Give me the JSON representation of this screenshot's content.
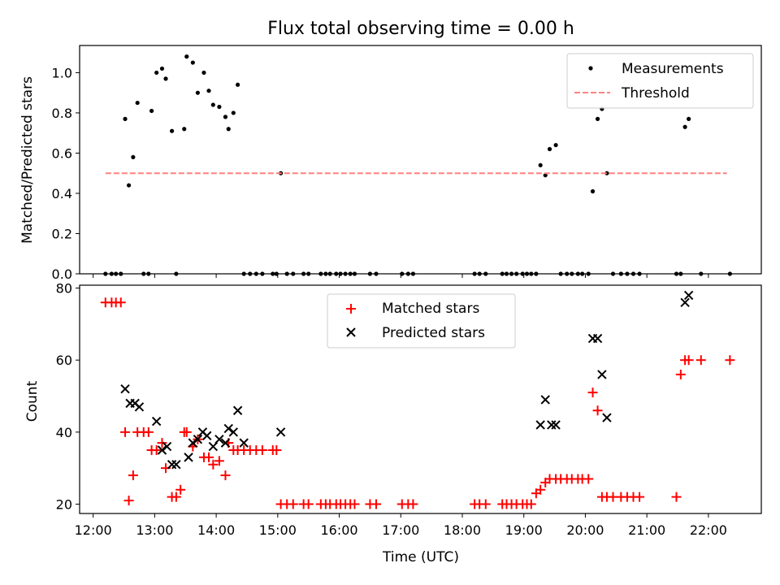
{
  "chart_data": [
    {
      "type": "scatter",
      "title": "Flux total observing time = 0.00 h",
      "ylabel": "Matched/Predicted stars",
      "xlim": [
        11.78,
        22.86
      ],
      "ylim": [
        0,
        1.135
      ],
      "yticks": [
        0.0,
        0.2,
        0.4,
        0.6,
        0.8,
        1.0
      ],
      "xticks": [
        12,
        13,
        14,
        15,
        16,
        17,
        18,
        19,
        20,
        21,
        22
      ],
      "legend_location": "upper right",
      "series": [
        {
          "name": "Measurements",
          "marker": "dot",
          "color": "#000000",
          "x": [
            12.2,
            12.3,
            12.37,
            12.45,
            12.52,
            12.58,
            12.65,
            12.72,
            12.82,
            12.9,
            12.95,
            13.03,
            13.12,
            13.18,
            13.28,
            13.35,
            13.48,
            13.52,
            13.62,
            13.7,
            13.8,
            13.88,
            13.95,
            14.05,
            14.15,
            14.2,
            14.28,
            14.35,
            14.45,
            14.55,
            14.65,
            14.75,
            14.92,
            14.98,
            15.05,
            15.15,
            15.25,
            15.42,
            15.5,
            15.7,
            15.78,
            15.85,
            15.95,
            16.02,
            16.1,
            16.18,
            16.25,
            16.5,
            16.6,
            17.02,
            17.12,
            17.2,
            18.2,
            18.28,
            18.38,
            18.65,
            18.72,
            18.8,
            18.88,
            18.98,
            19.05,
            19.12,
            19.2,
            19.27,
            19.35,
            19.42,
            19.52,
            19.6,
            19.7,
            19.78,
            19.88,
            19.95,
            20.05,
            20.12,
            20.2,
            20.27,
            20.35,
            20.45,
            20.58,
            20.68,
            20.78,
            20.88,
            21.48,
            21.55,
            21.62,
            21.68,
            21.88,
            22.35
          ],
          "y": [
            0,
            0,
            0,
            0,
            0.77,
            0.44,
            0.58,
            0.85,
            0,
            0,
            0.81,
            1.0,
            1.02,
            0.97,
            0.71,
            0,
            0.72,
            1.08,
            1.05,
            0.9,
            1.0,
            0.91,
            0.84,
            0.83,
            0.78,
            0.72,
            0.8,
            0.94,
            0,
            0,
            0,
            0,
            0,
            0,
            0.5,
            0,
            0,
            0,
            0,
            0,
            0,
            0,
            0,
            0,
            0,
            0,
            0,
            0,
            0,
            0,
            0,
            0,
            0,
            0,
            0,
            0,
            0,
            0,
            0,
            0,
            0,
            0,
            0,
            0.54,
            0.49,
            0.62,
            0.64,
            0,
            0,
            0,
            0,
            0,
            0,
            0.41,
            0.77,
            0.82,
            0.5,
            0,
            0,
            0,
            0,
            0,
            0,
            0,
            0.73,
            0.77,
            0,
            0
          ]
        },
        {
          "name": "Threshold",
          "marker": "dashed-line",
          "color": "#ff8080",
          "x": [
            12.2,
            22.3
          ],
          "y": [
            0.5,
            0.5
          ]
        }
      ]
    },
    {
      "type": "scatter",
      "xlabel": "Time (UTC)",
      "ylabel": "Count",
      "xlim": [
        11.78,
        22.86
      ],
      "ylim": [
        17.4,
        80.8
      ],
      "yticks": [
        20,
        40,
        60,
        80
      ],
      "xticks": [
        12,
        13,
        14,
        15,
        16,
        17,
        18,
        19,
        20,
        21,
        22
      ],
      "xticklabels": [
        "12:00",
        "13:00",
        "14:00",
        "15:00",
        "16:00",
        "17:00",
        "18:00",
        "19:00",
        "20:00",
        "21:00",
        "22:00"
      ],
      "legend_location": "upper center",
      "series": [
        {
          "name": "Matched stars",
          "marker": "plus",
          "color": "#ff0000",
          "x": [
            12.2,
            12.3,
            12.37,
            12.45,
            12.52,
            12.58,
            12.65,
            12.72,
            12.82,
            12.9,
            12.95,
            13.03,
            13.12,
            13.18,
            13.28,
            13.35,
            13.42,
            13.48,
            13.52,
            13.62,
            13.7,
            13.8,
            13.88,
            13.95,
            14.05,
            14.15,
            14.2,
            14.28,
            14.35,
            14.45,
            14.55,
            14.65,
            14.75,
            14.92,
            14.98,
            15.05,
            15.15,
            15.25,
            15.42,
            15.5,
            15.7,
            15.78,
            15.85,
            15.95,
            16.02,
            16.1,
            16.18,
            16.25,
            16.5,
            16.6,
            17.02,
            17.12,
            17.2,
            18.2,
            18.28,
            18.38,
            18.65,
            18.72,
            18.8,
            18.88,
            18.98,
            19.05,
            19.12,
            19.2,
            19.27,
            19.35,
            19.42,
            19.52,
            19.6,
            19.7,
            19.78,
            19.88,
            19.95,
            20.05,
            20.12,
            20.2,
            20.27,
            20.35,
            20.45,
            20.58,
            20.68,
            20.78,
            20.88,
            21.48,
            21.55,
            21.62,
            21.68,
            21.88,
            22.35
          ],
          "y": [
            76,
            76,
            76,
            76,
            40,
            21,
            28,
            40,
            40,
            40,
            35,
            35,
            37,
            30,
            22,
            22,
            24,
            40,
            40,
            36,
            38,
            33,
            33,
            31,
            32,
            28,
            37,
            35,
            35,
            35,
            35,
            35,
            35,
            35,
            35,
            20,
            20,
            20,
            20,
            20,
            20,
            20,
            20,
            20,
            20,
            20,
            20,
            20,
            20,
            20,
            20,
            20,
            20,
            20,
            20,
            20,
            20,
            20,
            20,
            20,
            20,
            20,
            20,
            23,
            24,
            26,
            27,
            27,
            27,
            27,
            27,
            27,
            27,
            27,
            51,
            46,
            22,
            22,
            22,
            22,
            22,
            22,
            22,
            22,
            56,
            60,
            60,
            60,
            60
          ]
        },
        {
          "name": "Predicted stars",
          "marker": "x",
          "color": "#000000",
          "x": [
            12.52,
            12.6,
            12.68,
            12.75,
            13.03,
            13.12,
            13.2,
            13.28,
            13.35,
            13.55,
            13.62,
            13.7,
            13.78,
            13.85,
            13.95,
            14.05,
            14.15,
            14.2,
            14.28,
            14.35,
            14.45,
            15.05,
            19.27,
            19.35,
            19.45,
            19.52,
            20.12,
            20.2,
            20.27,
            20.35,
            21.62,
            21.68
          ],
          "y": [
            52,
            48,
            48,
            47,
            43,
            35,
            36,
            31,
            31,
            33,
            37,
            38,
            40,
            39,
            36,
            38,
            37,
            41,
            40,
            46,
            37,
            40,
            42,
            49,
            42,
            42,
            66,
            66,
            56,
            44,
            76,
            78
          ]
        }
      ]
    }
  ]
}
